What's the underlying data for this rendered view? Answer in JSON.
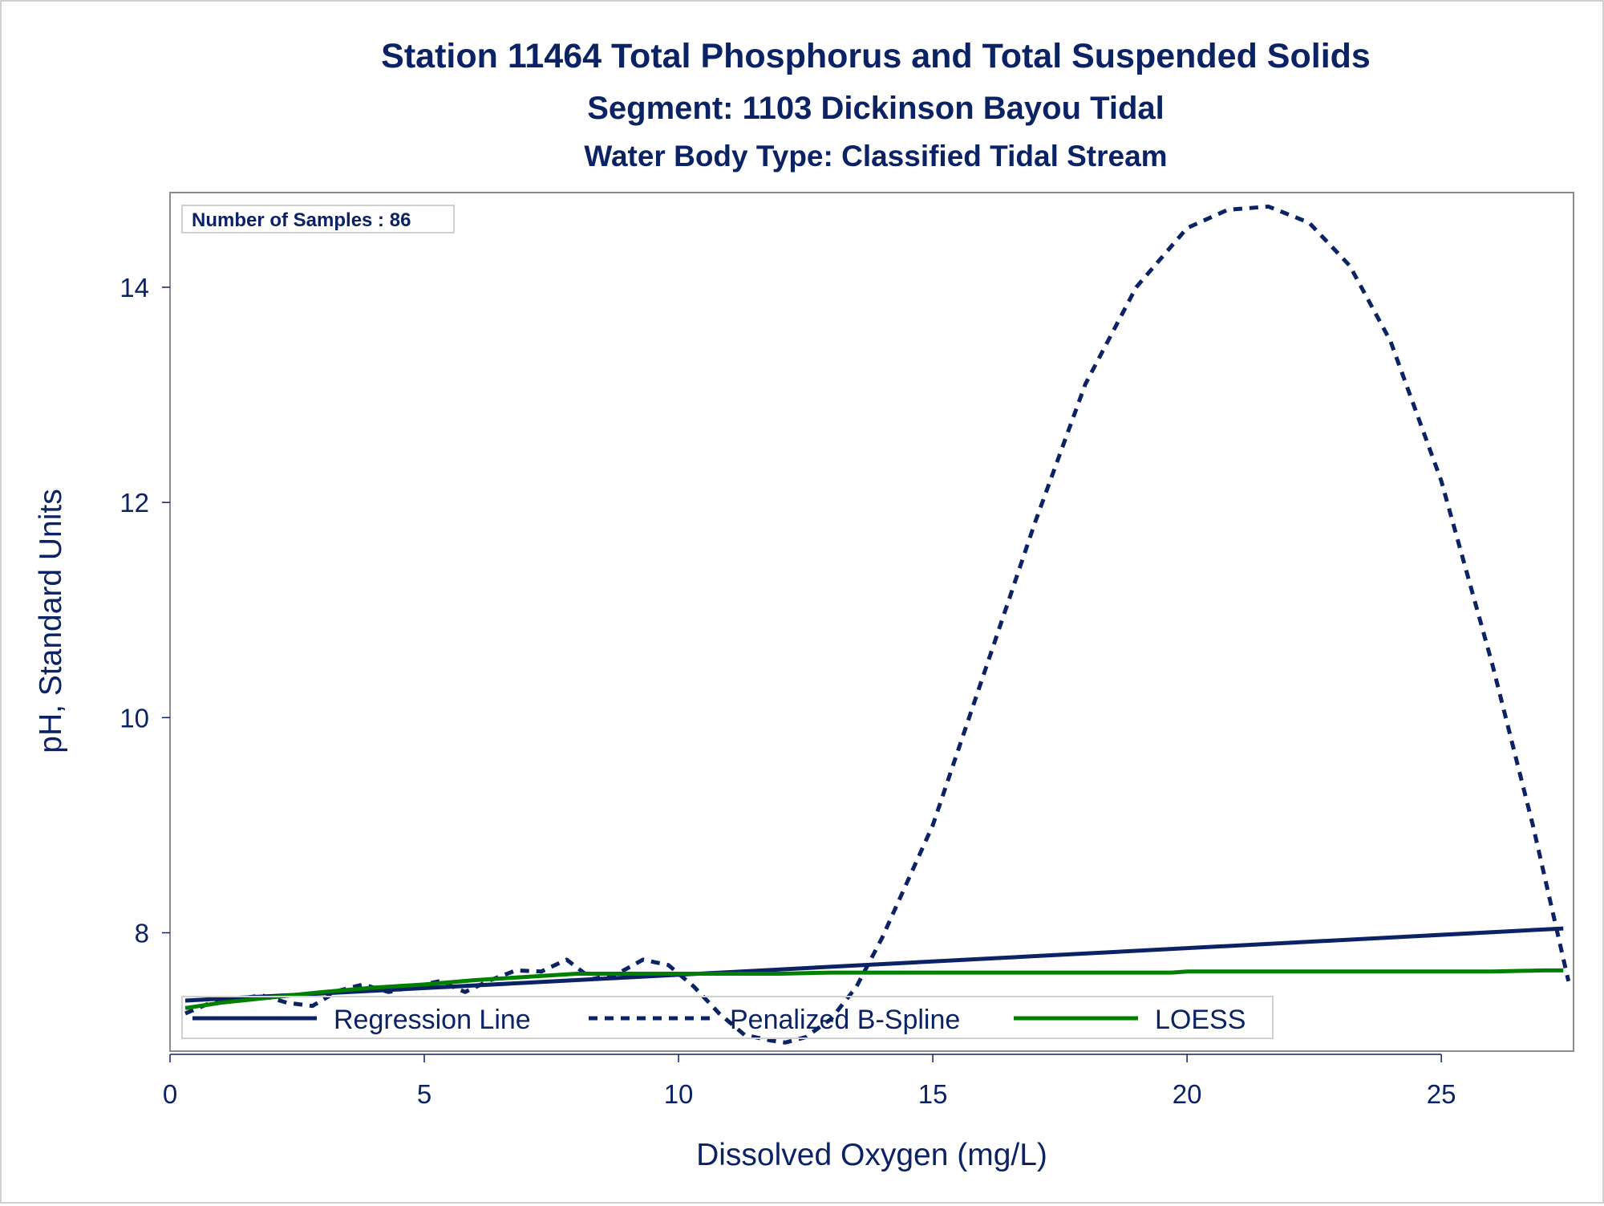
{
  "chart_data": {
    "type": "line",
    "title": "Station 11464  Total Phosphorus and Total Suspended Solids",
    "subtitle": "Segment: 1103  Dickinson Bayou Tidal",
    "subtitle2": "Water Body Type: Classified Tidal Stream",
    "xlabel": "Dissolved Oxygen (mg/L)",
    "ylabel": "pH, Standard Units",
    "xlim": [
      0,
      27.6
    ],
    "ylim": [
      6.9,
      14.88
    ],
    "xticks": [
      0,
      5,
      10,
      15,
      20,
      25
    ],
    "yticks": [
      8,
      10,
      12,
      14
    ],
    "annotation": "Number of Samples : 86",
    "legend_position": "bottom-inside",
    "grid": false,
    "series": [
      {
        "name": "Regression Line",
        "style": "solid",
        "color": "#0b2265",
        "x": [
          0.3,
          27.4
        ],
        "y": [
          7.37,
          8.04
        ]
      },
      {
        "name": "Penalized B-Spline",
        "style": "dashed",
        "color": "#0b2265",
        "x": [
          0.3,
          0.8,
          1.3,
          1.8,
          2.3,
          2.8,
          3.3,
          3.8,
          4.3,
          4.8,
          5.3,
          5.8,
          6.3,
          6.8,
          7.3,
          7.8,
          8.3,
          8.8,
          9.3,
          9.8,
          10.3,
          10.8,
          11.3,
          11.8,
          12.1,
          12.5,
          13.0,
          13.5,
          14.0,
          15.0,
          16.0,
          17.0,
          18.0,
          19.0,
          20.0,
          20.8,
          21.6,
          22.4,
          23.2,
          24.0,
          25.0,
          26.0,
          26.8,
          27.5
        ],
        "y": [
          7.25,
          7.35,
          7.38,
          7.42,
          7.35,
          7.32,
          7.46,
          7.52,
          7.45,
          7.5,
          7.55,
          7.45,
          7.56,
          7.65,
          7.64,
          7.75,
          7.57,
          7.62,
          7.75,
          7.7,
          7.5,
          7.25,
          7.05,
          7.0,
          6.98,
          7.03,
          7.2,
          7.5,
          7.95,
          9.0,
          10.4,
          11.8,
          13.1,
          14.0,
          14.55,
          14.72,
          14.75,
          14.6,
          14.2,
          13.5,
          12.2,
          10.5,
          9.0,
          7.55
        ]
      },
      {
        "name": "LOESS",
        "style": "solid",
        "color": "#008000",
        "x": [
          0.3,
          1.0,
          2.0,
          3.0,
          4.0,
          5.0,
          6.0,
          7.0,
          8.0,
          9.0,
          10.0,
          11.0,
          12.0,
          13.0,
          15.0,
          17.0,
          19.7,
          20.0,
          23.0,
          26.0,
          27.0,
          27.4
        ],
        "y": [
          7.3,
          7.35,
          7.4,
          7.45,
          7.49,
          7.52,
          7.56,
          7.59,
          7.62,
          7.62,
          7.62,
          7.62,
          7.62,
          7.63,
          7.63,
          7.63,
          7.63,
          7.64,
          7.64,
          7.64,
          7.65,
          7.65
        ]
      }
    ]
  }
}
